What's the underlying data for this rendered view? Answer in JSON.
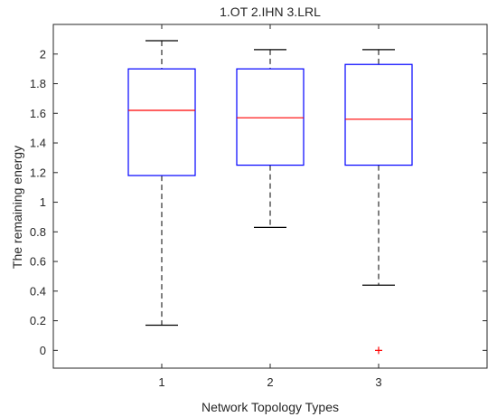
{
  "chart_data": {
    "type": "box",
    "title": "1.OT 2.IHN 3.LRL",
    "xlabel": "Network Topology Types",
    "ylabel": "The remaining energy",
    "categories": [
      "1",
      "2",
      "3"
    ],
    "ylim": [
      -0.12,
      2.2
    ],
    "yticks": [
      0,
      0.2,
      0.4,
      0.6,
      0.8,
      1,
      1.2,
      1.4,
      1.6,
      1.8,
      2
    ],
    "ytick_labels": [
      "0",
      "0.2",
      "0.4",
      "0.6",
      "0.8",
      "1",
      "1.2",
      "1.4",
      "1.6",
      "1.8",
      "2"
    ],
    "boxes": [
      {
        "category": "1",
        "whisker_low": 0.17,
        "q1": 1.18,
        "median": 1.62,
        "q3": 1.9,
        "whisker_high": 2.09,
        "outliers": []
      },
      {
        "category": "2",
        "whisker_low": 0.83,
        "q1": 1.25,
        "median": 1.57,
        "q3": 1.9,
        "whisker_high": 2.03,
        "outliers": []
      },
      {
        "category": "3",
        "whisker_low": 0.44,
        "q1": 1.25,
        "median": 1.56,
        "q3": 1.93,
        "whisker_high": 2.03,
        "outliers": [
          0
        ]
      }
    ],
    "grid": false,
    "colors": {
      "box": "#0000ff",
      "median": "#ff0000",
      "whisker": "#000000",
      "outlier": "#ff0000",
      "axis": "#262626"
    }
  }
}
